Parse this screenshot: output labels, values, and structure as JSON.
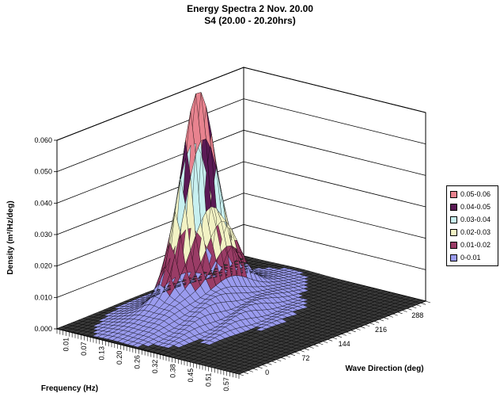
{
  "chart_data": {
    "type": "surface",
    "title": "Energy Spectra 2 Nov. 20.00",
    "subtitle": "S4 (20.00 - 20.20hrs)",
    "xlabel": "Frequency (Hz)",
    "ylabel": "Wave Direction (deg)",
    "zlabel": "Density (m²/Hz/deg)",
    "frequency_ticks": [
      "0.01",
      "0.07",
      "0.13",
      "0.20",
      "0.26",
      "0.32",
      "0.38",
      "0.45",
      "0.51",
      "0.57"
    ],
    "direction_ticks": [
      "0",
      "72",
      "144",
      "216",
      "288"
    ],
    "density_ticks": [
      "0.000",
      "0.010",
      "0.020",
      "0.030",
      "0.040",
      "0.050",
      "0.060"
    ],
    "zlim": [
      0,
      0.06
    ],
    "peaks": [
      {
        "frequency": 0.15,
        "direction": 185,
        "density": 0.06
      },
      {
        "frequency": 0.2,
        "direction": 205,
        "density": 0.023
      }
    ],
    "legend_placement": "right",
    "legend": [
      {
        "label": "0.05-0.06",
        "color": "#e8838f"
      },
      {
        "label": "0.04-0.05",
        "color": "#5a1a55"
      },
      {
        "label": "0.03-0.04",
        "color": "#c8f0f0"
      },
      {
        "label": "0.02-0.03",
        "color": "#f2f2c4"
      },
      {
        "label": "0.01-0.02",
        "color": "#9a3c66"
      },
      {
        "label": "0-0.01",
        "color": "#9a9bee"
      }
    ]
  }
}
